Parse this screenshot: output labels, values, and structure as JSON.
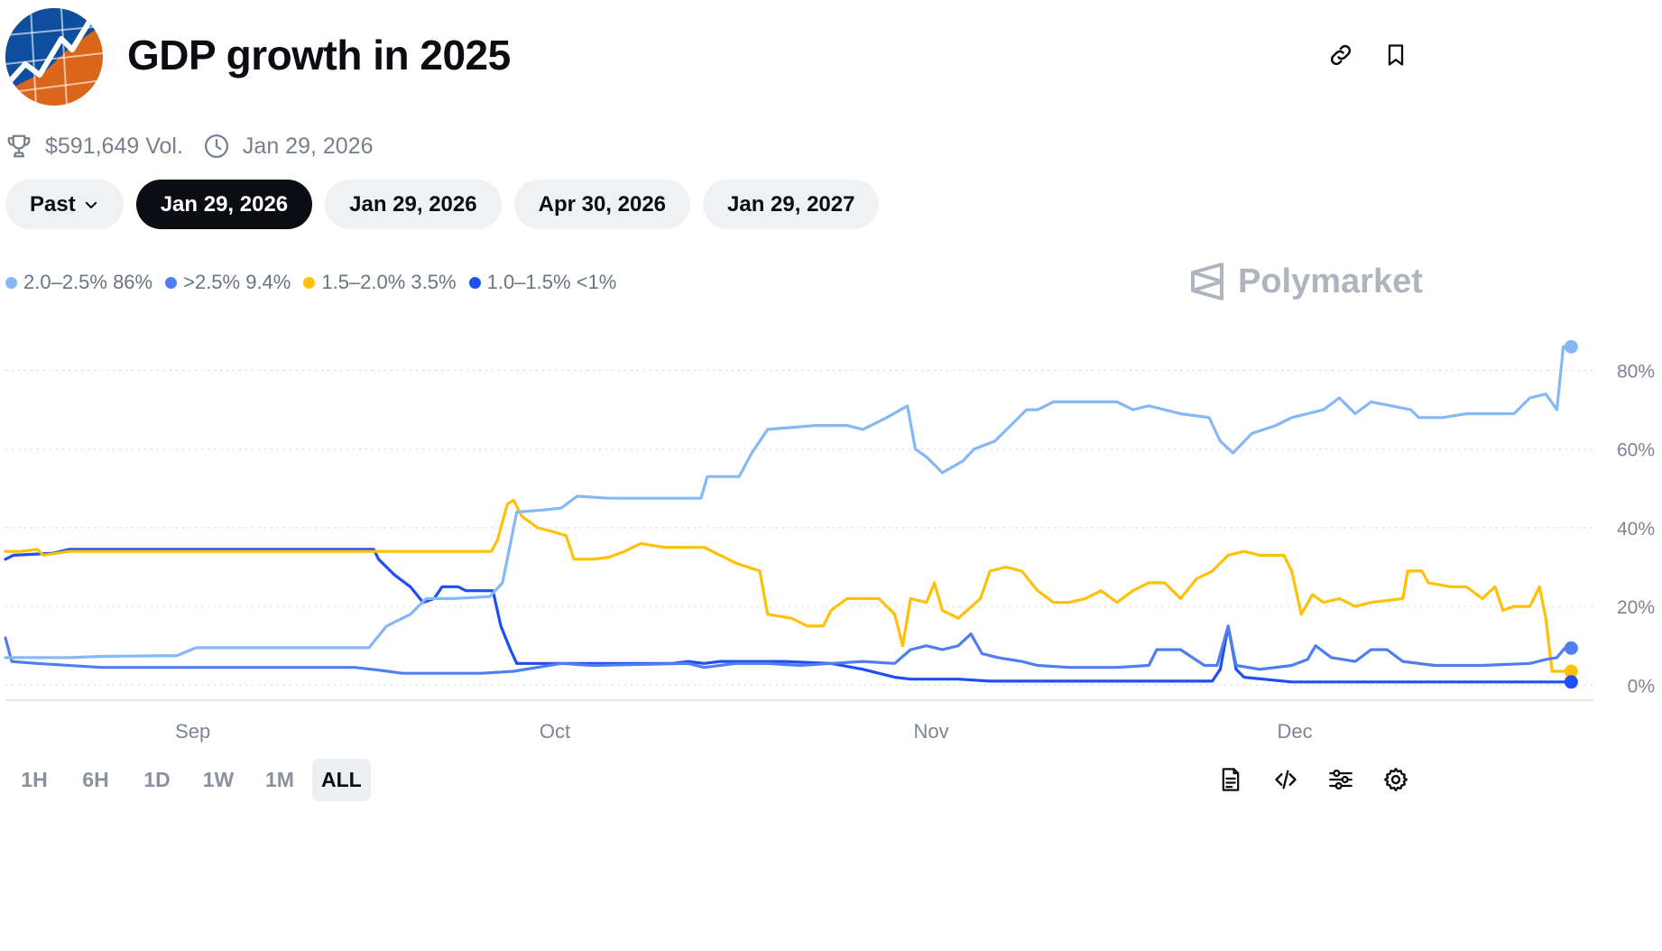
{
  "header": {
    "title": "GDP growth in 2025",
    "logo_icon": "gdp-chart-logo",
    "actions": [
      {
        "name": "link-icon"
      },
      {
        "name": "bookmark-icon"
      }
    ]
  },
  "meta": {
    "volume": "$591,649 Vol.",
    "end_date": "Jan 29, 2026",
    "volume_icon": "trophy-icon",
    "date_icon": "clock-icon"
  },
  "date_pills": [
    {
      "label": "Past",
      "has_dropdown": true,
      "active": false
    },
    {
      "label": "Jan 29, 2026",
      "active": true
    },
    {
      "label": "Jan 29, 2026",
      "active": false
    },
    {
      "label": "Apr 30, 2026",
      "active": false
    },
    {
      "label": "Jan 29, 2027",
      "active": false
    }
  ],
  "legend": [
    {
      "label": "2.0–2.5% 86%",
      "color": "#85b8f5"
    },
    {
      "label": ">2.5% 9.4%",
      "color": "#4f7ef2"
    },
    {
      "label": "1.5–2.0% 3.5%",
      "color": "#ffc107"
    },
    {
      "label": "1.0–1.5% <1%",
      "color": "#1f4ff0"
    }
  ],
  "brand": "Polymarket",
  "time_ranges": [
    {
      "label": "1H",
      "active": false
    },
    {
      "label": "6H",
      "active": false
    },
    {
      "label": "1D",
      "active": false
    },
    {
      "label": "1W",
      "active": false
    },
    {
      "label": "1M",
      "active": false
    },
    {
      "label": "ALL",
      "active": true
    }
  ],
  "bottom_icons": [
    "document-icon",
    "embed-code-icon",
    "sliders-icon",
    "settings-gear-icon"
  ],
  "chart_data": {
    "type": "line",
    "title": "",
    "xlabel": "",
    "ylabel": "",
    "x_domain": [
      0,
      100
    ],
    "x_ticks": [
      {
        "x": 11.8,
        "label": "Sep"
      },
      {
        "x": 34.6,
        "label": "Oct"
      },
      {
        "x": 58.3,
        "label": "Nov"
      },
      {
        "x": 81.2,
        "label": "Dec"
      }
    ],
    "ylim": [
      -2,
      87
    ],
    "y_ticks": [
      {
        "value": 0,
        "label": "0%"
      },
      {
        "value": 20,
        "label": "20%"
      },
      {
        "value": 40,
        "label": "40%"
      },
      {
        "value": 60,
        "label": "60%"
      },
      {
        "value": 80,
        "label": "80%"
      }
    ],
    "grid": true,
    "legend_position": "top-left",
    "series": [
      {
        "name": "2.0–2.5%",
        "color": "#85b8f5",
        "points": [
          [
            0,
            7
          ],
          [
            2,
            7
          ],
          [
            4,
            7
          ],
          [
            6,
            7.3
          ],
          [
            10.8,
            7.5
          ],
          [
            12,
            9.5
          ],
          [
            22.9,
            9.5
          ],
          [
            24,
            15
          ],
          [
            25.5,
            18
          ],
          [
            26.5,
            22
          ],
          [
            28.2,
            22
          ],
          [
            30.5,
            22.5
          ],
          [
            31.3,
            26
          ],
          [
            32.2,
            44
          ],
          [
            33.8,
            44.5
          ],
          [
            35,
            45
          ],
          [
            36,
            48
          ],
          [
            38,
            47.5
          ],
          [
            43,
            47.5
          ],
          [
            43.8,
            47.5
          ],
          [
            44.2,
            53
          ],
          [
            46.2,
            53
          ],
          [
            47,
            59
          ],
          [
            48,
            65
          ],
          [
            51,
            66
          ],
          [
            53,
            66
          ],
          [
            54,
            65
          ],
          [
            55.5,
            68
          ],
          [
            56.8,
            71
          ],
          [
            57.3,
            60
          ],
          [
            58,
            58
          ],
          [
            59,
            54
          ],
          [
            60.3,
            57
          ],
          [
            61,
            60
          ],
          [
            62.3,
            62
          ],
          [
            63.3,
            66
          ],
          [
            64.3,
            70
          ],
          [
            65,
            70
          ],
          [
            66,
            72
          ],
          [
            68,
            72
          ],
          [
            70,
            72
          ],
          [
            71,
            70
          ],
          [
            72,
            71
          ],
          [
            74,
            69
          ],
          [
            75.8,
            68
          ],
          [
            76.5,
            62
          ],
          [
            77.3,
            59
          ],
          [
            78.5,
            64
          ],
          [
            80,
            66
          ],
          [
            81,
            68
          ],
          [
            82,
            69
          ],
          [
            83,
            70
          ],
          [
            84,
            73
          ],
          [
            85,
            69
          ],
          [
            86,
            72
          ],
          [
            88.5,
            70
          ],
          [
            89,
            68
          ],
          [
            90.5,
            68
          ],
          [
            92,
            69
          ],
          [
            95,
            69
          ],
          [
            96,
            73
          ],
          [
            97,
            74
          ],
          [
            97.7,
            70
          ],
          [
            98.1,
            86
          ],
          [
            98.6,
            86
          ]
        ],
        "end_label": "86%"
      },
      {
        "name": ">2.5%",
        "color": "#4f7ef2",
        "points": [
          [
            0,
            12
          ],
          [
            0.4,
            6
          ],
          [
            2,
            5.5
          ],
          [
            6,
            4.5
          ],
          [
            22,
            4.5
          ],
          [
            23.5,
            3.8
          ],
          [
            25,
            3
          ],
          [
            27,
            3
          ],
          [
            30,
            3
          ],
          [
            32,
            3.5
          ],
          [
            33.5,
            4.5
          ],
          [
            35,
            5.5
          ],
          [
            37,
            5
          ],
          [
            43,
            5.5
          ],
          [
            44,
            4.5
          ],
          [
            46,
            5.5
          ],
          [
            48,
            5.5
          ],
          [
            50,
            5
          ],
          [
            52,
            5.5
          ],
          [
            54,
            6
          ],
          [
            56,
            5.5
          ],
          [
            57,
            9
          ],
          [
            58,
            10
          ],
          [
            59,
            9
          ],
          [
            60,
            10
          ],
          [
            60.8,
            13
          ],
          [
            61.5,
            8
          ],
          [
            62.5,
            7
          ],
          [
            64,
            6
          ],
          [
            65,
            5
          ],
          [
            67,
            4.5
          ],
          [
            70,
            4.5
          ],
          [
            72,
            5
          ],
          [
            72.5,
            9
          ],
          [
            74,
            9
          ],
          [
            75.5,
            5
          ],
          [
            76.3,
            5
          ],
          [
            77,
            15
          ],
          [
            77.5,
            5
          ],
          [
            79,
            4
          ],
          [
            81,
            5
          ],
          [
            82,
            6.5
          ],
          [
            82.5,
            10
          ],
          [
            83.5,
            7
          ],
          [
            85,
            6
          ],
          [
            86,
            9
          ],
          [
            87,
            9
          ],
          [
            88,
            6
          ],
          [
            90,
            5
          ],
          [
            93,
            5
          ],
          [
            96,
            5.5
          ],
          [
            97,
            6.5
          ],
          [
            97.7,
            7
          ],
          [
            98.2,
            9.4
          ],
          [
            98.6,
            9.4
          ]
        ],
        "end_label": "9.4%"
      },
      {
        "name": "1.5–2.0%",
        "color": "#ffc107",
        "points": [
          [
            0,
            34
          ],
          [
            1,
            34
          ],
          [
            2,
            34.5
          ],
          [
            2.4,
            33
          ],
          [
            4,
            34
          ],
          [
            22,
            34
          ],
          [
            24.5,
            34
          ],
          [
            30.6,
            34
          ],
          [
            31,
            37
          ],
          [
            31.6,
            46
          ],
          [
            32,
            47
          ],
          [
            32.5,
            43
          ],
          [
            33.5,
            40
          ],
          [
            34.5,
            39
          ],
          [
            35.3,
            38
          ],
          [
            35.8,
            32
          ],
          [
            37,
            32
          ],
          [
            38,
            32.5
          ],
          [
            39,
            34
          ],
          [
            40,
            36
          ],
          [
            41.5,
            35
          ],
          [
            44,
            35
          ],
          [
            46,
            31
          ],
          [
            47.5,
            29
          ],
          [
            48,
            18
          ],
          [
            49.5,
            17
          ],
          [
            50.5,
            15
          ],
          [
            51.5,
            15
          ],
          [
            52,
            19
          ],
          [
            53,
            22
          ],
          [
            54,
            22
          ],
          [
            55,
            22
          ],
          [
            56,
            18
          ],
          [
            56.5,
            10
          ],
          [
            57,
            22
          ],
          [
            58,
            21
          ],
          [
            58.5,
            26
          ],
          [
            59,
            19
          ],
          [
            60,
            17
          ],
          [
            61.4,
            22
          ],
          [
            62,
            29
          ],
          [
            63,
            30
          ],
          [
            64,
            29
          ],
          [
            65,
            24
          ],
          [
            66,
            21
          ],
          [
            67,
            21
          ],
          [
            68,
            22
          ],
          [
            69,
            24
          ],
          [
            70,
            21
          ],
          [
            71,
            24
          ],
          [
            72,
            26
          ],
          [
            73,
            26
          ],
          [
            74,
            22
          ],
          [
            75,
            27
          ],
          [
            76,
            29
          ],
          [
            77,
            33
          ],
          [
            78,
            34
          ],
          [
            79,
            33
          ],
          [
            80.5,
            33
          ],
          [
            81,
            29
          ],
          [
            81.6,
            18
          ],
          [
            82.3,
            23
          ],
          [
            83,
            21
          ],
          [
            84,
            22
          ],
          [
            85,
            20
          ],
          [
            86,
            21
          ],
          [
            88,
            22
          ],
          [
            88.3,
            29
          ],
          [
            89.2,
            29
          ],
          [
            89.6,
            26
          ],
          [
            91,
            25
          ],
          [
            92,
            25
          ],
          [
            93,
            22
          ],
          [
            93.8,
            25
          ],
          [
            94.3,
            19
          ],
          [
            95,
            20
          ],
          [
            96,
            20
          ],
          [
            96.6,
            25
          ],
          [
            97,
            17
          ],
          [
            97.4,
            3.5
          ],
          [
            98.6,
            3.5
          ]
        ],
        "end_label": "3.5%"
      },
      {
        "name": "1.0–1.5%",
        "color": "#1f4ff0",
        "points": [
          [
            0,
            32
          ],
          [
            0.5,
            33
          ],
          [
            3,
            33.5
          ],
          [
            4,
            34.5
          ],
          [
            22,
            34.5
          ],
          [
            23.2,
            34.5
          ],
          [
            23.5,
            32
          ],
          [
            24.5,
            28
          ],
          [
            25.5,
            25
          ],
          [
            26.3,
            21
          ],
          [
            27,
            22
          ],
          [
            27.5,
            25
          ],
          [
            28.5,
            25
          ],
          [
            29,
            24
          ],
          [
            30.7,
            24
          ],
          [
            31.2,
            15
          ],
          [
            31.8,
            9
          ],
          [
            32.2,
            5.5
          ],
          [
            34,
            5.5
          ],
          [
            42,
            5.5
          ],
          [
            43,
            6
          ],
          [
            44,
            5.5
          ],
          [
            45,
            6
          ],
          [
            49,
            6
          ],
          [
            52,
            5.5
          ],
          [
            54,
            4
          ],
          [
            56,
            2
          ],
          [
            57,
            1.5
          ],
          [
            60,
            1.5
          ],
          [
            62,
            1
          ],
          [
            76,
            1
          ],
          [
            76.5,
            4
          ],
          [
            77,
            15
          ],
          [
            77.5,
            4
          ],
          [
            78,
            2
          ],
          [
            81,
            0.8
          ],
          [
            98.6,
            0.8
          ]
        ],
        "end_label": "<1%"
      }
    ]
  }
}
